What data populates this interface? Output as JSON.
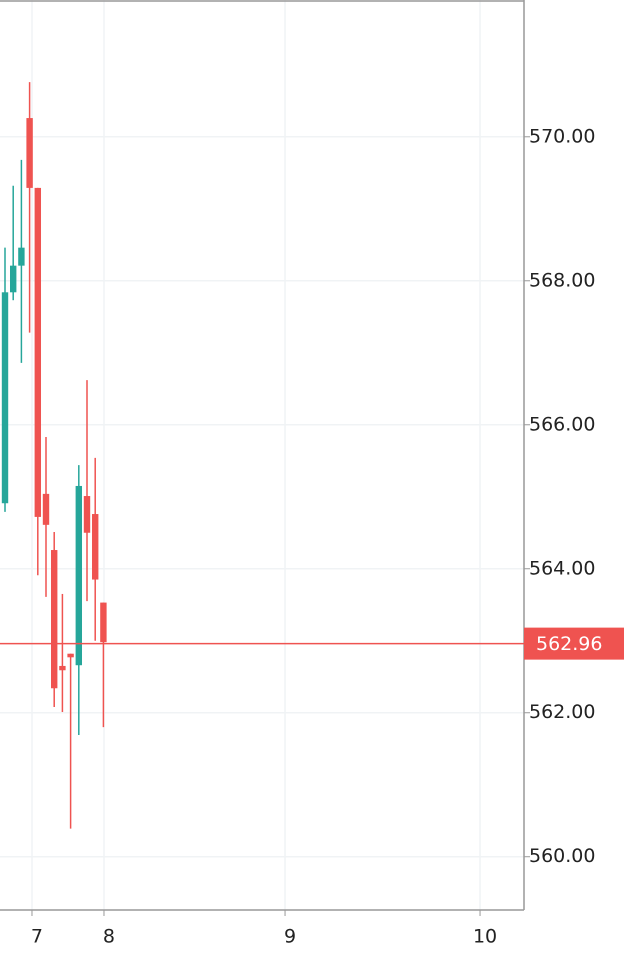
{
  "chart_data": {
    "type": "candlestick",
    "x": [
      0,
      1,
      2,
      3,
      4,
      5,
      6,
      7,
      8,
      9,
      10,
      11,
      12
    ],
    "open": [
      564.91,
      567.84,
      568.21,
      570.26,
      569.29,
      565.04,
      564.26,
      562.65,
      562.82,
      562.66,
      565.01,
      564.76,
      563.53
    ],
    "high": [
      568.46,
      569.32,
      569.68,
      570.76,
      569.29,
      565.83,
      564.51,
      563.65,
      562.82,
      565.44,
      566.62,
      565.54,
      563.53
    ],
    "low": [
      564.79,
      567.73,
      566.86,
      567.28,
      563.91,
      563.61,
      562.08,
      562.01,
      560.39,
      561.69,
      563.55,
      563.0,
      561.8
    ],
    "close": [
      567.84,
      568.21,
      568.46,
      569.29,
      564.72,
      564.61,
      562.34,
      562.59,
      562.77,
      565.15,
      564.5,
      563.85,
      562.98
    ],
    "up_color": "#26a69a",
    "down_color": "#ef5350",
    "last_price": {
      "value": 562.96,
      "label": "562.96"
    },
    "xlim": [
      -0.61,
      63.29
    ],
    "xticks": [
      {
        "value": 3.29,
        "label": "7"
      },
      {
        "value": 12.07,
        "label": "8"
      },
      {
        "value": 34.15,
        "label": "9"
      },
      {
        "value": 57.93,
        "label": "10"
      }
    ],
    "ylim": [
      559.26,
      571.9
    ],
    "yticks": [
      {
        "value": 560,
        "label": "560.00"
      },
      {
        "value": 562,
        "label": "562.00"
      },
      {
        "value": 564,
        "label": "564.00"
      },
      {
        "value": 566,
        "label": "566.00"
      },
      {
        "value": 568,
        "label": "568.00"
      },
      {
        "value": 570,
        "label": "570.00"
      }
    ],
    "grid": true
  }
}
